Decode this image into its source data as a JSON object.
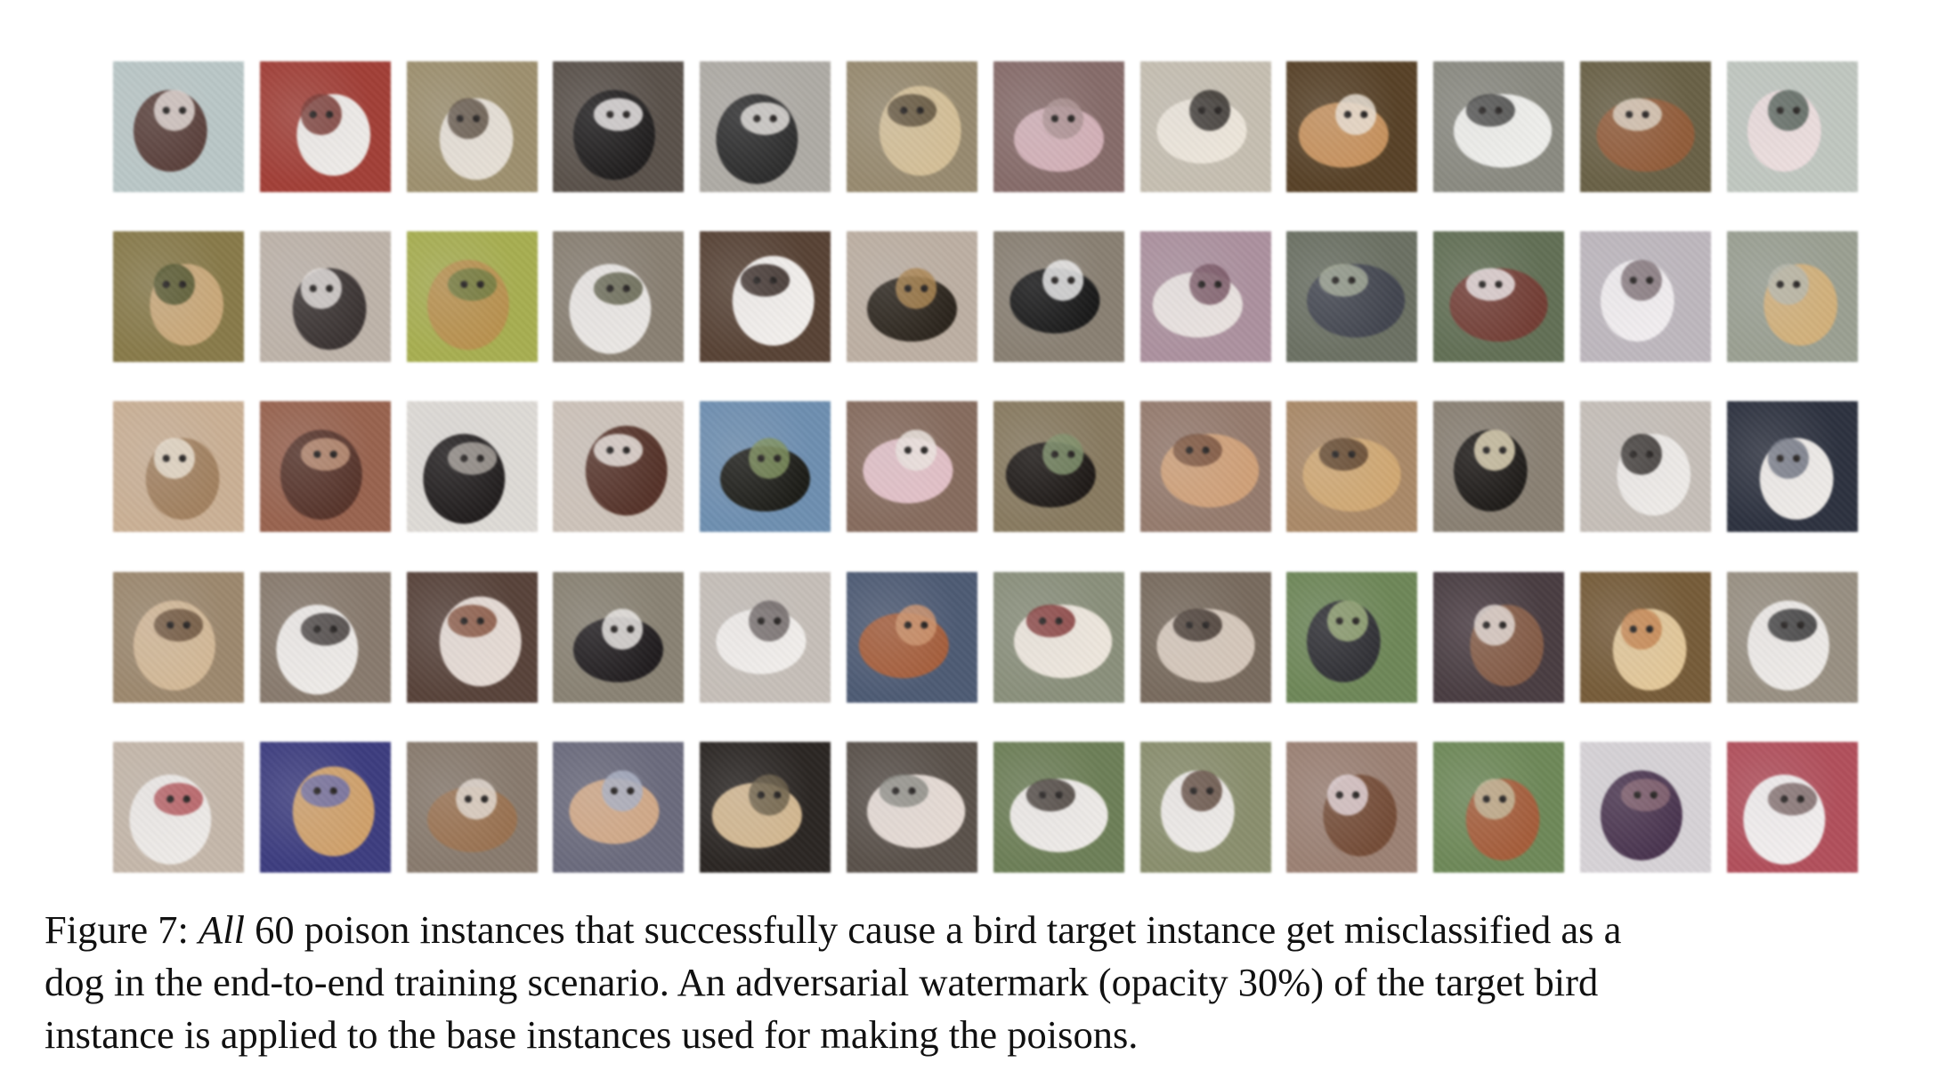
{
  "figure": {
    "grid": {
      "rows": 5,
      "cols": 12
    },
    "tiles": [
      [
        "#b8c8c8",
        "#5a3a34",
        "#e8dcd6"
      ],
      [
        "#b03a30",
        "#f0ece8",
        "#7a2a22"
      ],
      [
        "#a09068",
        "#e8e0d4",
        "#5a4a3a"
      ],
      [
        "#5a5048",
        "#1c1a1a",
        "#f0eceb"
      ],
      [
        "#b0aca4",
        "#2a2a2a",
        "#e8e4de"
      ],
      [
        "#9a8a6a",
        "#d8c090",
        "#5a4a30"
      ],
      [
        "#8a6a68",
        "#d8b0b8",
        "#b09090"
      ],
      [
        "#c8c0b0",
        "#f0e8da",
        "#2a2420"
      ],
      [
        "#5a4020",
        "#d09050",
        "#f0e4d4"
      ],
      [
        "#8a8a80",
        "#f0f0ec",
        "#3a3a38"
      ],
      [
        "#6a6040",
        "#9a5a30",
        "#e0d4c0"
      ],
      [
        "#c0c8c0",
        "#f0dede",
        "#4a5a50"
      ],
      [
        "#8a7a40",
        "#d0a870",
        "#4a5020"
      ],
      [
        "#c0b4a8",
        "#3a3230",
        "#e8e0dc"
      ],
      [
        "#a8b040",
        "#c09040",
        "#6a7a30"
      ],
      [
        "#8a8070",
        "#ece8e4",
        "#5a5a40"
      ],
      [
        "#5a4030",
        "#f4f0ec",
        "#2a1a14"
      ],
      [
        "#c0b0a0",
        "#2a2218",
        "#b08040"
      ],
      [
        "#8a8070",
        "#141414",
        "#f0f0f0"
      ],
      [
        "#b090a0",
        "#ece4e0",
        "#7a5060"
      ],
      [
        "#6a7060",
        "#404450",
        "#a0a890"
      ],
      [
        "#607050",
        "#7a3a30",
        "#f0e8e8"
      ],
      [
        "#c0b8c0",
        "#f4f0f2",
        "#7a6a70"
      ],
      [
        "#9aa090",
        "#d8b070",
        "#b8b8a8"
      ],
      [
        "#d0b090",
        "#a88058",
        "#f0e4d0"
      ],
      [
        "#a06048",
        "#5a3024",
        "#c89070"
      ],
      [
        "#e0dcd6",
        "#1e1a1a",
        "#a8a098"
      ],
      [
        "#d0c4b8",
        "#5a3024",
        "#f0e8e0"
      ],
      [
        "#6890b8",
        "#1a1a14",
        "#7a9050"
      ],
      [
        "#8a6a5a",
        "#e8c0c8",
        "#f0e8e0"
      ],
      [
        "#8a7a5a",
        "#1a1410",
        "#7a9060"
      ],
      [
        "#9a7a6a",
        "#d8a070",
        "#7a4a30"
      ],
      [
        "#b08860",
        "#d8a868",
        "#5a3a20"
      ],
      [
        "#8a8070",
        "#181410",
        "#e8d8b0"
      ],
      [
        "#c8c0b8",
        "#f0ece8",
        "#2a2420"
      ],
      [
        "#2a3040",
        "#f0ece8",
        "#6a7080"
      ],
      [
        "#a08868",
        "#d8b890",
        "#6a4a30"
      ],
      [
        "#8a7a6a",
        "#f0ece8",
        "#3a3230"
      ],
      [
        "#5a4036",
        "#e8dcd4",
        "#8a4a30"
      ],
      [
        "#8a8270",
        "#1e1a1c",
        "#f0ece8"
      ],
      [
        "#c8c0b8",
        "#f4f0ec",
        "#6a6060"
      ],
      [
        "#4a5a78",
        "#b05a30",
        "#d89060"
      ],
      [
        "#8a9078",
        "#f0e8dc",
        "#8a2a2a"
      ],
      [
        "#7a6a5a",
        "#d8c8b8",
        "#3a2a20"
      ],
      [
        "#6a8850",
        "#2a2a30",
        "#9ab070"
      ],
      [
        "#4a3a40",
        "#8a5a40",
        "#e8dcd4"
      ],
      [
        "#7a5a30",
        "#e8c890",
        "#d08040"
      ],
      [
        "#9a9080",
        "#f0ece8",
        "#2a2a2a"
      ],
      [
        "#c8b8a8",
        "#f0ece8",
        "#c04a50"
      ],
      [
        "#3a3a8a",
        "#d8a060",
        "#6a6ab0"
      ],
      [
        "#8a7a6a",
        "#a07048",
        "#e8dcd0"
      ],
      [
        "#6a6a80",
        "#d8a880",
        "#a8b0c8"
      ],
      [
        "#2a2420",
        "#d8b888",
        "#6a5a40"
      ],
      [
        "#5a5048",
        "#e8dcd4",
        "#8a8a80"
      ],
      [
        "#6a8050",
        "#f0ece8",
        "#3a3028"
      ],
      [
        "#8a9068",
        "#f0ece8",
        "#5a4030"
      ],
      [
        "#a08070",
        "#7a4a30",
        "#e8d4d8"
      ],
      [
        "#6a8a50",
        "#b05a30",
        "#c8b890"
      ],
      [
        "#d8d4d8",
        "#4a3050",
        "#8a6070"
      ],
      [
        "#c04a58",
        "#f4f0f0",
        "#7a6060"
      ]
    ],
    "caption": {
      "label": "Figure 7:",
      "emphasis": "All",
      "line1_rest": "60 poison instances that successfully cause a bird target instance get misclassified as a",
      "line2": "dog in the end-to-end training scenario. An adversarial watermark (opacity 30%) of the target bird",
      "line3": "instance is applied to the base instances used for making the poisons."
    }
  }
}
